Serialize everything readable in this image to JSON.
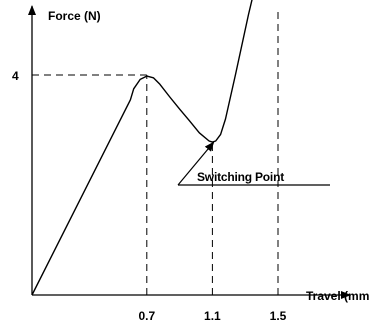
{
  "chart_data": {
    "type": "line",
    "title": "",
    "xlabel": "Travel (mm)",
    "ylabel": "Force (N)",
    "x_ticks": [
      "0.7",
      "1.1",
      "1.5"
    ],
    "y_ticks": [
      "4"
    ],
    "grid": false,
    "reference_lines": {
      "vertical": [
        0.7,
        1.1,
        1.5
      ],
      "horizontal": [
        4
      ]
    },
    "series": [
      {
        "x": [
          0,
          0.6,
          0.62,
          0.66,
          0.7,
          0.74,
          0.78,
          0.84,
          0.9,
          0.96,
          1.02,
          1.08,
          1.1,
          1.12,
          1.15,
          1.18,
          1.24,
          1.32,
          1.4
        ],
        "y": [
          0,
          3.55,
          3.75,
          3.92,
          3.98,
          3.95,
          3.83,
          3.6,
          3.38,
          3.17,
          2.95,
          2.8,
          2.78,
          2.8,
          2.92,
          3.2,
          4.0,
          5.1,
          6.1
        ]
      }
    ],
    "annotations": [
      {
        "text": "Switching Point",
        "points_to": {
          "x": 1.12,
          "y": 2.85
        }
      }
    ]
  }
}
